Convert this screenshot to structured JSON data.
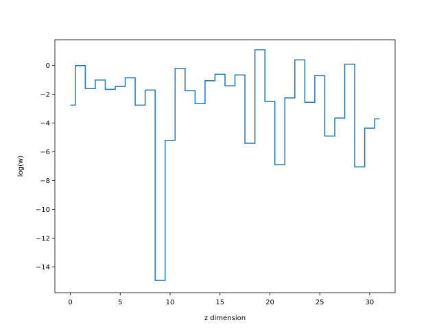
{
  "chart_data": {
    "type": "line",
    "drawstyle": "steps-mid",
    "title": "",
    "xlabel": "z dimension",
    "ylabel": "log(w)",
    "xlim": [
      -1.55,
      32.55
    ],
    "ylim": [
      -15.8,
      1.8
    ],
    "xticks": [
      0,
      5,
      10,
      15,
      20,
      25,
      30
    ],
    "yticks": [
      0,
      -2,
      -4,
      -6,
      -8,
      -10,
      -12,
      -14
    ],
    "grid": false,
    "legend": "none",
    "color": "#1f77b4",
    "series": [
      {
        "x": [
          0,
          1,
          2,
          3,
          4,
          5,
          6,
          7,
          8,
          9,
          10,
          11,
          12,
          13,
          14,
          15,
          16,
          17,
          18,
          19,
          20,
          21,
          22,
          23,
          24,
          25,
          26,
          27,
          28,
          29,
          30,
          31
        ],
        "values": [
          -2.75,
          0.0,
          -1.6,
          -1.0,
          -1.65,
          -1.45,
          -0.85,
          -2.75,
          -1.7,
          -14.95,
          -5.2,
          -0.2,
          -1.75,
          -2.65,
          -1.05,
          -0.6,
          -1.4,
          -0.65,
          -5.4,
          1.1,
          -2.5,
          -6.9,
          -2.25,
          0.4,
          -2.55,
          -0.7,
          -4.9,
          -3.65,
          0.1,
          -7.05,
          -4.35,
          -3.7
        ]
      }
    ]
  }
}
